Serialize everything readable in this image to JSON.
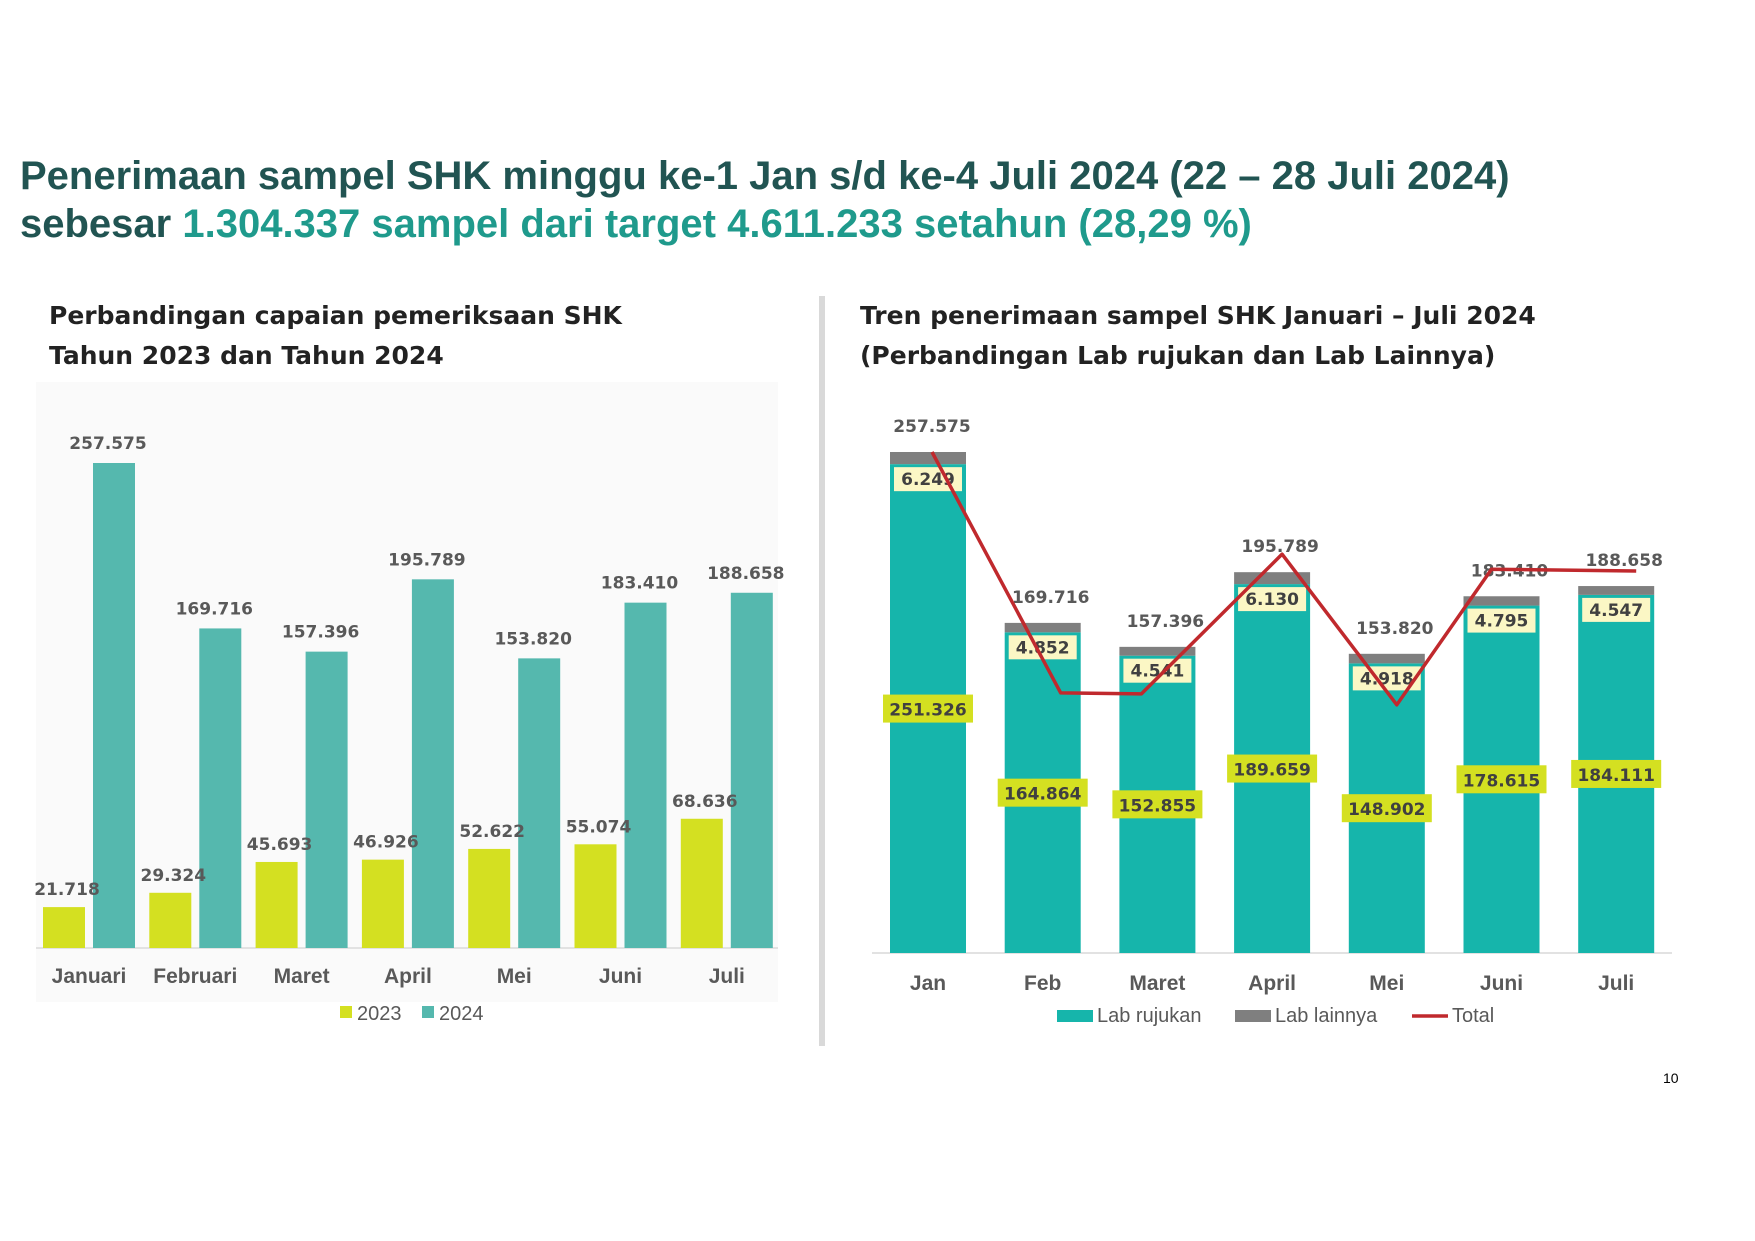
{
  "title": {
    "line1": "Penerimaan sampel SHK minggu ke-1 Jan s/d ke-4 Juli 2024 (22 – 28 Juli 2024)",
    "line2_prefix": "sebesar ",
    "line2_highlight": "1.304.337 sampel dari target 4.611.233 setahun (28,29 %)"
  },
  "left_chart_title": {
    "line1": "Perbandingan capaian pemeriksaan SHK",
    "line2": "Tahun 2023 dan Tahun 2024"
  },
  "right_chart_title": {
    "line1": "Tren penerimaan sampel SHK Januari – Juli 2024",
    "line2": "(Perbandingan Lab rujukan dan Lab Lainnya)"
  },
  "page_number": "10",
  "colors": {
    "title": "#215452",
    "title_highlight": "#1f9a8c",
    "series_2023": "#d4e021",
    "series_2024": "#55b8ae",
    "lab_rujukan": "#16b5ab",
    "lab_lainnya": "#7f7f7f",
    "total_line": "#c0292d",
    "label_box_light": "#fbf7c5",
    "label_box_yellow": "#d4e021"
  },
  "chart_data": [
    {
      "type": "bar",
      "categories": [
        "Januari",
        "Februari",
        "Maret",
        "April",
        "Mei",
        "Juni",
        "Juli"
      ],
      "series": [
        {
          "name": "2023",
          "values": [
            21718,
            29324,
            45693,
            46926,
            52622,
            55074,
            68636
          ],
          "labels": [
            "21.718",
            "29.324",
            "45.693",
            "46.926",
            "52.622",
            "55.074",
            "68.636"
          ]
        },
        {
          "name": "2024",
          "values": [
            257575,
            169716,
            157396,
            195789,
            153820,
            183410,
            188658
          ],
          "labels": [
            "257.575",
            "169.716",
            "157.396",
            "195.789",
            "153.820",
            "183.410",
            "188.658"
          ]
        }
      ],
      "ylim": [
        0,
        270000
      ],
      "legend": "bottom"
    },
    {
      "type": "bar",
      "stacked": true,
      "categories": [
        "Jan",
        "Feb",
        "Maret",
        "April",
        "Mei",
        "Juni",
        "Juli"
      ],
      "series": [
        {
          "name": "Lab rujukan",
          "values": [
            251326,
            164864,
            152855,
            189659,
            148902,
            178615,
            184111
          ],
          "labels": [
            "251.326",
            "164.864",
            "152.855",
            "189.659",
            "148.902",
            "178.615",
            "184.111"
          ]
        },
        {
          "name": "Lab lainnya",
          "values": [
            6249,
            4852,
            4541,
            6130,
            4918,
            4795,
            4547
          ],
          "labels": [
            "6.249",
            "4.852",
            "4.541",
            "6.130",
            "4.918",
            "4.795",
            "4.547"
          ]
        },
        {
          "name": "Total",
          "type": "line",
          "values": [
            257575,
            169716,
            157396,
            195789,
            153820,
            183410,
            188658
          ],
          "labels": [
            "257.575",
            "169.716",
            "157.396",
            "195.789",
            "153.820",
            "183.410",
            "188.658"
          ]
        }
      ],
      "ylim": [
        0,
        270000
      ],
      "legend": "bottom"
    }
  ]
}
